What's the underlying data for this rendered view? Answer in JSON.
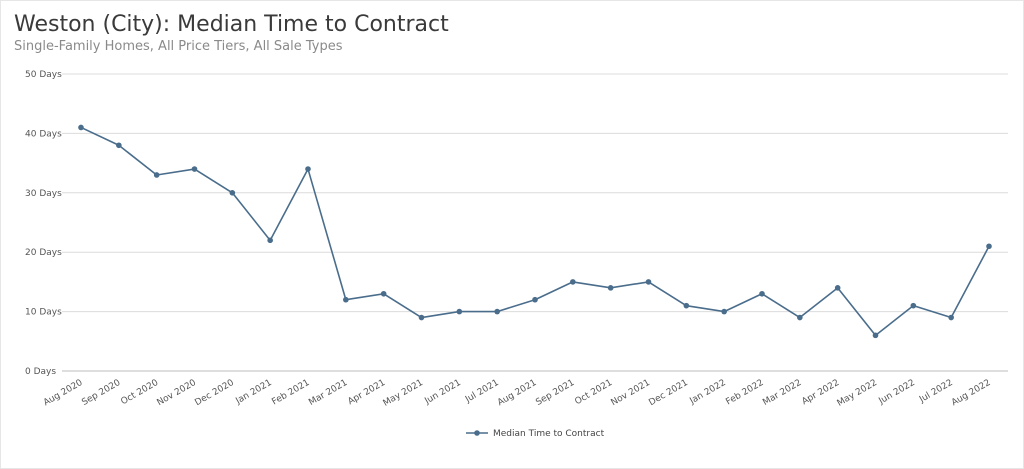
{
  "header": {
    "title": "Weston (City): Median Time to Contract",
    "subtitle": "Single-Family Homes, All Price Tiers, All Sale Types"
  },
  "colors": {
    "series": "#4a6d8c",
    "grid": "#dcdcdc",
    "axis": "#bdbdbd"
  },
  "chart_data": {
    "type": "line",
    "title": "Weston (City): Median Time to Contract",
    "subtitle": "Single-Family Homes, All Price Tiers, All Sale Types",
    "categories": [
      "Aug 2020",
      "Sep 2020",
      "Oct 2020",
      "Nov 2020",
      "Dec 2020",
      "Jan 2021",
      "Feb 2021",
      "Mar 2021",
      "Apr 2021",
      "May 2021",
      "Jun 2021",
      "Jul 2021",
      "Aug 2021",
      "Sep 2021",
      "Oct 2021",
      "Nov 2021",
      "Dec 2021",
      "Jan 2022",
      "Feb 2022",
      "Mar 2022",
      "Apr 2022",
      "May 2022",
      "Jun 2022",
      "Jul 2022",
      "Aug 2022"
    ],
    "series": [
      {
        "name": "Median Time to Contract",
        "values": [
          41,
          38,
          33,
          34,
          30,
          22,
          34,
          12,
          13,
          9,
          10,
          10,
          12,
          15,
          14,
          15,
          11,
          10,
          13,
          9,
          14,
          6,
          11,
          9,
          21
        ]
      }
    ],
    "y_ticks": [
      "0 Days",
      "10 Days",
      "20 Days",
      "30 Days",
      "40 Days",
      "50 Days"
    ],
    "y_tick_values": [
      0,
      10,
      20,
      30,
      40,
      50
    ],
    "ylim": [
      0,
      50
    ],
    "grid": true,
    "legend_position": "bottom-center"
  }
}
